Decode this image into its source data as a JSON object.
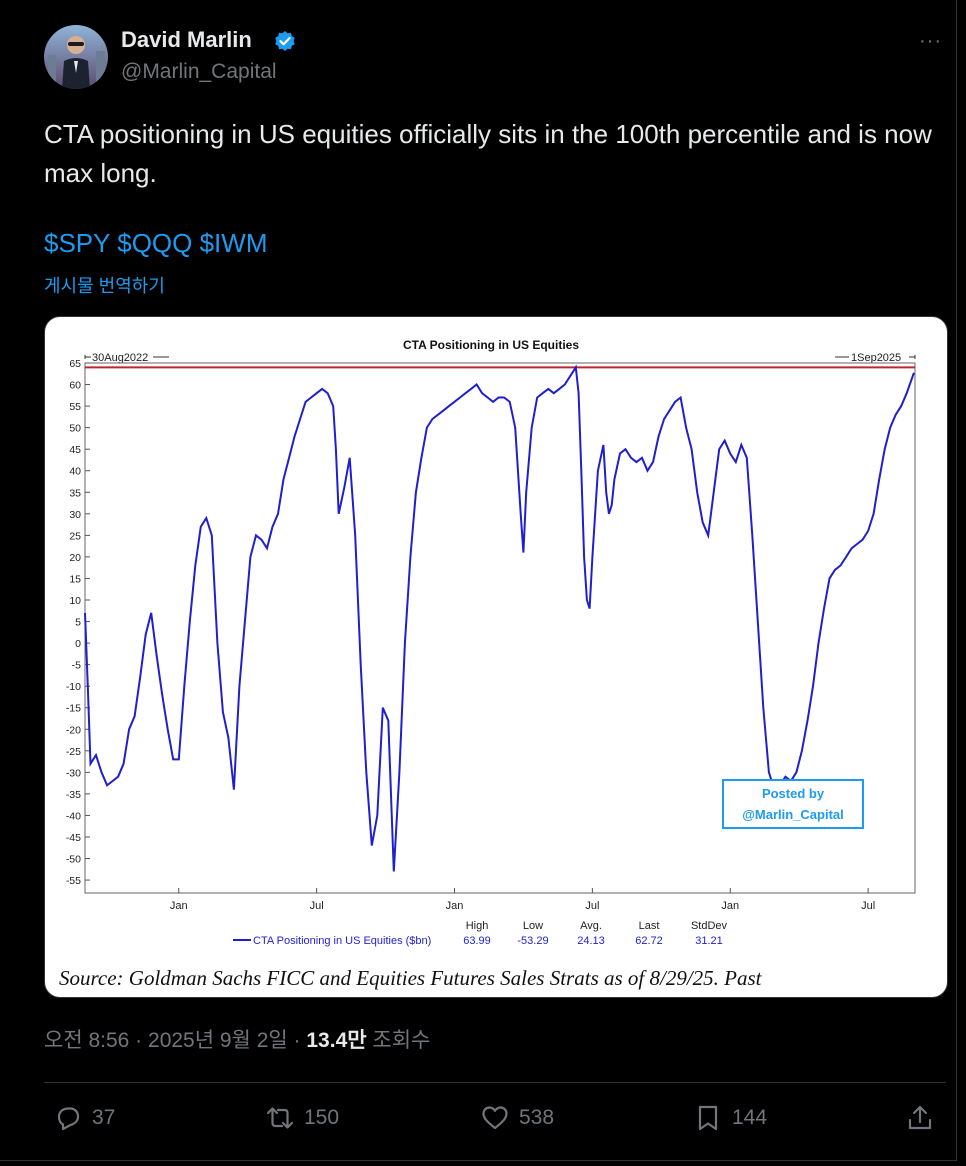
{
  "author": {
    "name": "David Marlin",
    "handle": "@Marlin_Capital",
    "verified": true
  },
  "more_label": "···",
  "post": {
    "text": "CTA positioning in US equities officially sits in the 100th percentile and is now max long.",
    "tickers": "$SPY $QQQ $IWM",
    "translate": "게시물 번역하기"
  },
  "meta": {
    "time": "오전 8:56 · 2025년 9월 2일 · ",
    "views_count": "13.4만",
    "views_label": " 조회수"
  },
  "actions": {
    "replies": "37",
    "reposts": "150",
    "likes": "538",
    "bookmarks": "144"
  },
  "colors": {
    "accent": "#1d9bf0",
    "line": "#1f1fd0",
    "high_line": "#c0262d"
  },
  "chart_data": {
    "type": "line",
    "title": "CTA Positioning in US Equities",
    "start_label": "30Aug2022",
    "end_label": "1Sep2025",
    "series": [
      {
        "name": "CTA Positioning in US Equities ($bn)",
        "points": [
          [
            2022.66,
            7
          ],
          [
            2022.67,
            -10
          ],
          [
            2022.68,
            -28
          ],
          [
            2022.7,
            -26
          ],
          [
            2022.72,
            -30
          ],
          [
            2022.74,
            -33
          ],
          [
            2022.76,
            -32
          ],
          [
            2022.78,
            -31
          ],
          [
            2022.8,
            -28
          ],
          [
            2022.82,
            -20
          ],
          [
            2022.84,
            -17
          ],
          [
            2022.86,
            -8
          ],
          [
            2022.88,
            2
          ],
          [
            2022.9,
            7
          ],
          [
            2022.92,
            -3
          ],
          [
            2022.94,
            -12
          ],
          [
            2022.96,
            -20
          ],
          [
            2022.98,
            -27
          ],
          [
            2023.0,
            -27
          ],
          [
            2023.02,
            -10
          ],
          [
            2023.04,
            5
          ],
          [
            2023.06,
            18
          ],
          [
            2023.08,
            27
          ],
          [
            2023.1,
            29
          ],
          [
            2023.12,
            25
          ],
          [
            2023.14,
            0
          ],
          [
            2023.16,
            -16
          ],
          [
            2023.18,
            -22
          ],
          [
            2023.2,
            -34
          ],
          [
            2023.22,
            -10
          ],
          [
            2023.24,
            5
          ],
          [
            2023.26,
            20
          ],
          [
            2023.28,
            25
          ],
          [
            2023.3,
            24
          ],
          [
            2023.32,
            22
          ],
          [
            2023.34,
            27
          ],
          [
            2023.36,
            30
          ],
          [
            2023.38,
            38
          ],
          [
            2023.4,
            43
          ],
          [
            2023.42,
            48
          ],
          [
            2023.44,
            52
          ],
          [
            2023.46,
            56
          ],
          [
            2023.48,
            57
          ],
          [
            2023.5,
            58
          ],
          [
            2023.52,
            59
          ],
          [
            2023.54,
            58
          ],
          [
            2023.56,
            55
          ],
          [
            2023.57,
            45
          ],
          [
            2023.58,
            30
          ],
          [
            2023.6,
            36
          ],
          [
            2023.62,
            43
          ],
          [
            2023.64,
            25
          ],
          [
            2023.66,
            -5
          ],
          [
            2023.68,
            -30
          ],
          [
            2023.7,
            -47
          ],
          [
            2023.72,
            -40
          ],
          [
            2023.74,
            -15
          ],
          [
            2023.76,
            -18
          ],
          [
            2023.78,
            -53
          ],
          [
            2023.8,
            -30
          ],
          [
            2023.82,
            0
          ],
          [
            2023.84,
            20
          ],
          [
            2023.86,
            35
          ],
          [
            2023.88,
            43
          ],
          [
            2023.9,
            50
          ],
          [
            2023.92,
            52
          ],
          [
            2023.94,
            53
          ],
          [
            2023.96,
            54
          ],
          [
            2023.98,
            55
          ],
          [
            2024.0,
            56
          ],
          [
            2024.02,
            57
          ],
          [
            2024.04,
            58
          ],
          [
            2024.06,
            59
          ],
          [
            2024.08,
            60
          ],
          [
            2024.1,
            58
          ],
          [
            2024.12,
            57
          ],
          [
            2024.14,
            56
          ],
          [
            2024.16,
            57
          ],
          [
            2024.18,
            57
          ],
          [
            2024.2,
            56
          ],
          [
            2024.22,
            50
          ],
          [
            2024.24,
            30
          ],
          [
            2024.25,
            21
          ],
          [
            2024.26,
            35
          ],
          [
            2024.28,
            50
          ],
          [
            2024.3,
            57
          ],
          [
            2024.32,
            58
          ],
          [
            2024.34,
            59
          ],
          [
            2024.36,
            58
          ],
          [
            2024.38,
            59
          ],
          [
            2024.4,
            60
          ],
          [
            2024.42,
            62
          ],
          [
            2024.44,
            64
          ],
          [
            2024.45,
            58
          ],
          [
            2024.46,
            40
          ],
          [
            2024.47,
            20
          ],
          [
            2024.48,
            10
          ],
          [
            2024.49,
            8
          ],
          [
            2024.5,
            20
          ],
          [
            2024.52,
            40
          ],
          [
            2024.54,
            46
          ],
          [
            2024.55,
            35
          ],
          [
            2024.56,
            30
          ],
          [
            2024.57,
            32
          ],
          [
            2024.58,
            38
          ],
          [
            2024.6,
            44
          ],
          [
            2024.62,
            45
          ],
          [
            2024.64,
            43
          ],
          [
            2024.66,
            42
          ],
          [
            2024.68,
            43
          ],
          [
            2024.7,
            40
          ],
          [
            2024.72,
            42
          ],
          [
            2024.74,
            48
          ],
          [
            2024.76,
            52
          ],
          [
            2024.78,
            54
          ],
          [
            2024.8,
            56
          ],
          [
            2024.82,
            57
          ],
          [
            2024.84,
            50
          ],
          [
            2024.86,
            45
          ],
          [
            2024.88,
            35
          ],
          [
            2024.9,
            28
          ],
          [
            2024.92,
            25
          ],
          [
            2024.94,
            35
          ],
          [
            2024.96,
            45
          ],
          [
            2024.98,
            47
          ],
          [
            2025.0,
            44
          ],
          [
            2025.02,
            42
          ],
          [
            2025.04,
            46
          ],
          [
            2025.06,
            43
          ],
          [
            2025.08,
            25
          ],
          [
            2025.1,
            5
          ],
          [
            2025.12,
            -15
          ],
          [
            2025.14,
            -30
          ],
          [
            2025.16,
            -34
          ],
          [
            2025.18,
            -33
          ],
          [
            2025.2,
            -31
          ],
          [
            2025.22,
            -32
          ],
          [
            2025.24,
            -30
          ],
          [
            2025.26,
            -25
          ],
          [
            2025.28,
            -18
          ],
          [
            2025.3,
            -10
          ],
          [
            2025.32,
            0
          ],
          [
            2025.34,
            8
          ],
          [
            2025.36,
            15
          ],
          [
            2025.38,
            17
          ],
          [
            2025.4,
            18
          ],
          [
            2025.42,
            20
          ],
          [
            2025.44,
            22
          ],
          [
            2025.46,
            23
          ],
          [
            2025.48,
            24
          ],
          [
            2025.5,
            26
          ],
          [
            2025.52,
            30
          ],
          [
            2025.54,
            38
          ],
          [
            2025.56,
            45
          ],
          [
            2025.58,
            50
          ],
          [
            2025.6,
            53
          ],
          [
            2025.62,
            55
          ],
          [
            2025.64,
            58
          ],
          [
            2025.666,
            62.72
          ]
        ]
      }
    ],
    "reference_line": 63.99,
    "ylim": [
      -58,
      65
    ],
    "xlim": [
      2022.66,
      2025.67
    ],
    "y_ticks": [
      65,
      60,
      55,
      50,
      45,
      40,
      35,
      30,
      25,
      20,
      15,
      10,
      5,
      0,
      -5,
      -10,
      -15,
      -20,
      -25,
      -30,
      -35,
      -40,
      -45,
      -50,
      -55
    ],
    "x_ticks": [
      {
        "x": 2023.0,
        "label": "Jan"
      },
      {
        "x": 2023.5,
        "label": "Jul"
      },
      {
        "x": 2024.0,
        "label": "Jan"
      },
      {
        "x": 2024.5,
        "label": "Jul"
      },
      {
        "x": 2025.0,
        "label": "Jan"
      },
      {
        "x": 2025.5,
        "label": "Jul"
      }
    ],
    "stats": {
      "headers": [
        "High",
        "Low",
        "Avg.",
        "Last",
        "StdDev"
      ],
      "values": [
        "63.99",
        "-53.29",
        "24.13",
        "62.72",
        "31.21"
      ]
    },
    "watermark": [
      "Posted by",
      "@Marlin_Capital"
    ],
    "source": "Source: Goldman Sachs FICC and Equities Futures Sales Strats as of 8/29/25. Past"
  }
}
